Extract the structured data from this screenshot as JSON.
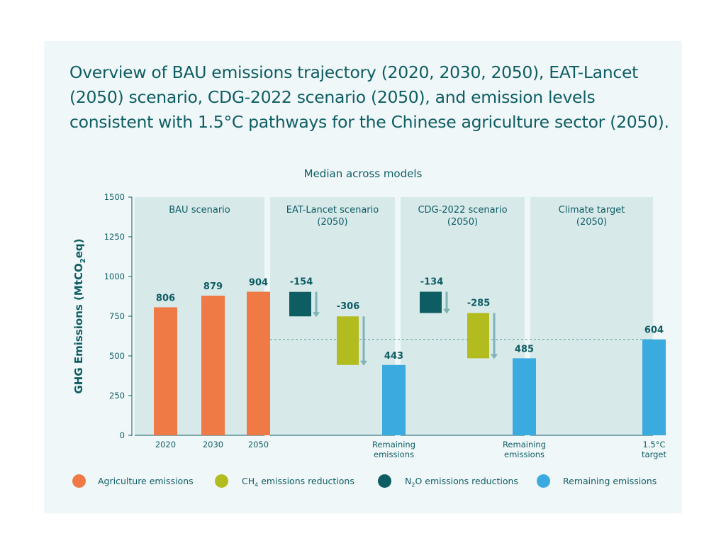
{
  "title": "Overview of BAU emissions trajectory (2020, 2030, 2050), EAT-Lancet (2050) scenario, CDG-2022 scenario (2050), and emission levels consistent with 1.5°C pathways for the Chinese agriculture sector (2050).",
  "subtitle": "Median across models",
  "legend": [
    {
      "key": "agriculture",
      "label": "Agriculture emissions",
      "color": "#ef7a45"
    },
    {
      "key": "ch4",
      "label_prefix": "CH",
      "label_sub": "4",
      "label_suffix": " emissions reductions",
      "color": "#b3bc1f"
    },
    {
      "key": "n2o",
      "label_prefix": "N",
      "label_sub": "2",
      "label_suffix": "O emissions reductions",
      "color": "#0e5d63"
    },
    {
      "key": "remaining",
      "label": "Remaining emissions",
      "color": "#3aaadf"
    }
  ],
  "chart_data": {
    "type": "bar",
    "ylabel": "GHG Emissions (MtCO2eq)",
    "ylim": [
      0,
      1500
    ],
    "yticks": [
      0,
      250,
      500,
      750,
      1000,
      1250,
      1500
    ],
    "reference_line": 604,
    "panels": [
      {
        "title": [
          "BAU scenario"
        ],
        "bars": [
          {
            "category": [
              "2020"
            ],
            "kind": "agriculture",
            "from": 0,
            "to": 806,
            "label": "806"
          },
          {
            "category": [
              "2030"
            ],
            "kind": "agriculture",
            "from": 0,
            "to": 879,
            "label": "879"
          },
          {
            "category": [
              "2050"
            ],
            "kind": "agriculture",
            "from": 0,
            "to": 904,
            "label": "904"
          }
        ]
      },
      {
        "title": [
          "EAT-Lancet scenario",
          "(2050)"
        ],
        "bars": [
          {
            "category": [],
            "kind": "n2o",
            "from": 749,
            "to": 903,
            "label": "-154"
          },
          {
            "category": [],
            "kind": "ch4",
            "from": 443,
            "to": 749,
            "label": "-306"
          },
          {
            "category": [
              "Remaining",
              "emissions"
            ],
            "kind": "remaining",
            "from": 0,
            "to": 443,
            "label": "443"
          }
        ]
      },
      {
        "title": [
          "CDG-2022 scenario",
          "(2050)"
        ],
        "bars": [
          {
            "category": [],
            "kind": "n2o",
            "from": 770,
            "to": 904,
            "label": "-134"
          },
          {
            "category": [],
            "kind": "ch4",
            "from": 485,
            "to": 770,
            "label": "-285"
          },
          {
            "category": [
              "Remaining",
              "emissions"
            ],
            "kind": "remaining",
            "from": 0,
            "to": 485,
            "label": "485"
          }
        ]
      },
      {
        "title": [
          "Climate target",
          "(2050)"
        ],
        "bars": [
          {
            "category": [
              "1.5°C",
              "target"
            ],
            "kind": "remaining",
            "from": 0,
            "to": 604,
            "label": "604",
            "slot": 2
          }
        ]
      }
    ],
    "colors": {
      "agriculture": "#ef7a45",
      "ch4": "#b3bc1f",
      "n2o": "#0e5d63",
      "remaining": "#3aaadf"
    }
  }
}
